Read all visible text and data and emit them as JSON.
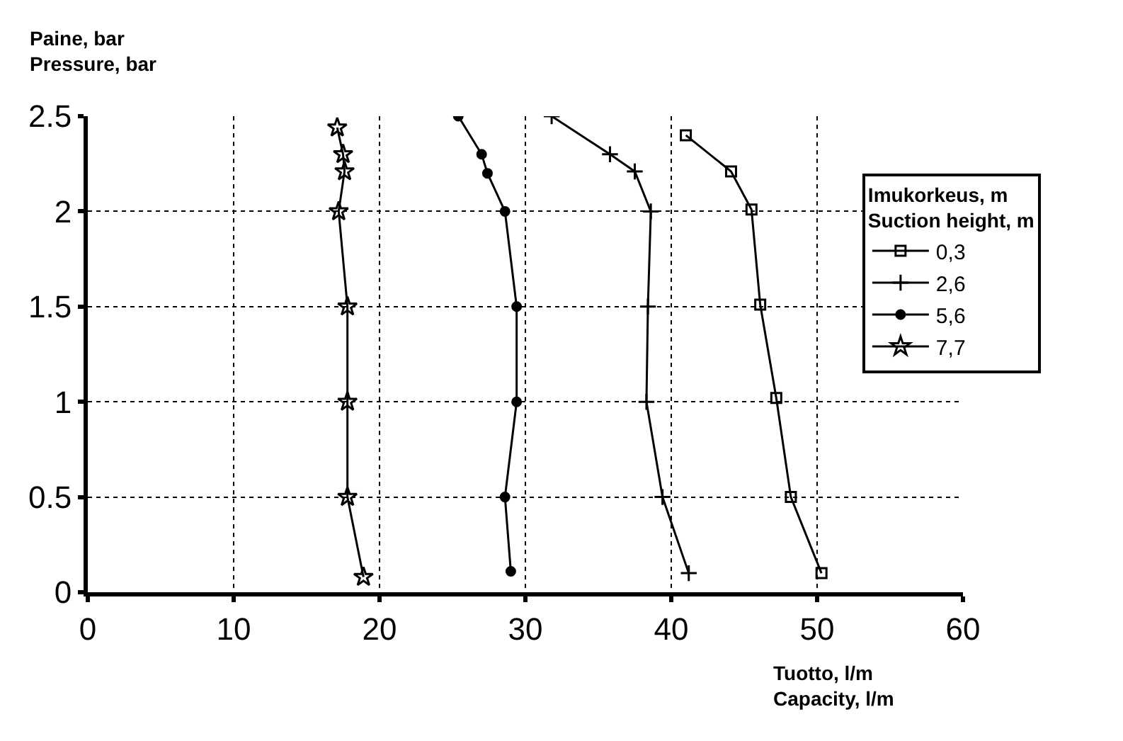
{
  "chart_data": {
    "type": "line",
    "ylabel": "Paine, bar\nPressure, bar",
    "xlabel": "Tuotto, l/m\nCapacity, l/m",
    "legend_title": "Imukorkeus, m\nSuction height, m",
    "legend": "right",
    "grid": true,
    "xlim": [
      0,
      60
    ],
    "xticks": [
      0,
      10,
      20,
      30,
      40,
      50,
      60
    ],
    "ylim": [
      0,
      2.5
    ],
    "yticks": [
      0,
      0.5,
      1,
      1.5,
      2,
      2.5
    ],
    "series": [
      {
        "name": "0,3",
        "color": "#000000",
        "marker": "square",
        "x": [
          41.0,
          44.1,
          45.5,
          46.1,
          47.2,
          48.2,
          50.3
        ],
        "values": [
          2.4,
          2.21,
          2.01,
          1.51,
          1.02,
          0.5,
          0.1
        ]
      },
      {
        "name": "2,6",
        "color": "#000000",
        "marker": "cross",
        "x": [
          31.8,
          35.8,
          37.5,
          38.6,
          38.4,
          38.3,
          39.4,
          41.2
        ],
        "values": [
          2.5,
          2.3,
          2.21,
          2.0,
          1.5,
          1.0,
          0.5,
          0.1
        ]
      },
      {
        "name": "5,6",
        "color": "#000000",
        "marker": "circle",
        "x": [
          25.4,
          27.0,
          27.4,
          28.6,
          29.4,
          29.4,
          28.6,
          29.0
        ],
        "values": [
          2.5,
          2.3,
          2.2,
          2.0,
          1.5,
          1.0,
          0.5,
          0.11
        ]
      },
      {
        "name": "7,7",
        "color": "#000000",
        "marker": "star",
        "x": [
          17.1,
          17.5,
          17.6,
          17.2,
          17.8,
          17.8,
          17.8,
          18.9
        ],
        "values": [
          2.44,
          2.3,
          2.21,
          2.0,
          1.5,
          1.0,
          0.5,
          0.08
        ]
      }
    ]
  }
}
